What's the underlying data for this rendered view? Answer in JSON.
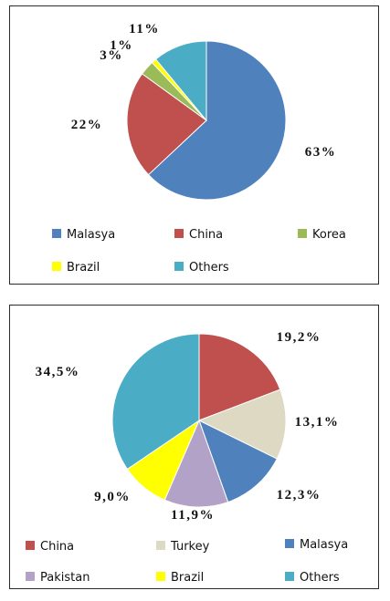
{
  "chart_data": [
    {
      "type": "pie",
      "title": "",
      "slices": [
        {
          "label": "Malasya",
          "value": 63,
          "text": "63%",
          "color": "#4f81bd"
        },
        {
          "label": "China",
          "value": 22,
          "text": "22%",
          "color": "#c0504d"
        },
        {
          "label": "Korea",
          "value": 3,
          "text": "3%",
          "color": "#9bbb59"
        },
        {
          "label": "Brazil",
          "value": 1,
          "text": "1%",
          "color": "#ffff00"
        },
        {
          "label": "Others",
          "value": 11,
          "text": "11%",
          "color": "#4bacc6"
        }
      ],
      "legend": [
        "Malasya",
        "China",
        "Korea",
        "Brazil",
        "Others"
      ],
      "legend_position": "bottom"
    },
    {
      "type": "pie",
      "title": "",
      "slices": [
        {
          "label": "China",
          "value": 19.2,
          "text": "19,2%",
          "color": "#c0504d"
        },
        {
          "label": "Turkey",
          "value": 13.1,
          "text": "13,1%",
          "color": "#ddd9c3"
        },
        {
          "label": "Malasya",
          "value": 12.3,
          "text": "12,3%",
          "color": "#4f81bd"
        },
        {
          "label": "Pakistan",
          "value": 11.9,
          "text": "11,9%",
          "color": "#b2a2c7"
        },
        {
          "label": "Brazil",
          "value": 9.0,
          "text": "9,0%",
          "color": "#ffff00"
        },
        {
          "label": "Others",
          "value": 34.5,
          "text": "34,5%",
          "color": "#4bacc6"
        }
      ],
      "legend": [
        "China",
        "Turkey",
        "Malasya",
        "Pakistan",
        "Brazil",
        "Others"
      ],
      "legend_position": "bottom"
    }
  ]
}
